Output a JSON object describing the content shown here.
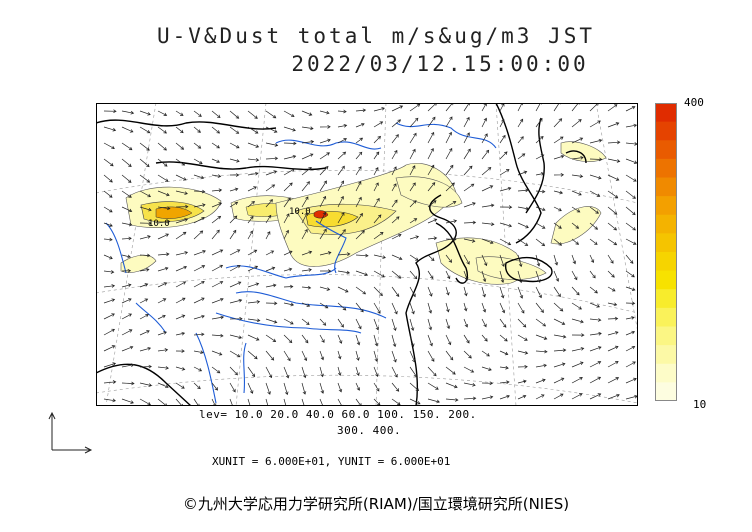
{
  "title": {
    "line1": "U-V&Dust total m/s&ug/m3 JST",
    "line2": "2022/03/12.15:00:00"
  },
  "colorbar": {
    "max_label": "400",
    "min_label": "10",
    "colors": [
      "#fdfde0",
      "#fdfcc8",
      "#fcf9a6",
      "#fbf684",
      "#faf25a",
      "#f8ec2c",
      "#f7e200",
      "#f6d400",
      "#f5c400",
      "#f4b300",
      "#f3a000",
      "#f08a00",
      "#ed7300",
      "#e95b00",
      "#e54300",
      "#e02c00"
    ]
  },
  "legend": {
    "levels_line1": "lev= 10.0 20.0 40.0 60.0 100. 150. 200.",
    "levels_line2": "300. 400.",
    "units": "XUNIT = 6.000E+01, YUNIT = 6.000E+01"
  },
  "map": {
    "contour_labels": [
      "10.0",
      "10.0"
    ],
    "colors": {
      "land_outline": "#000000",
      "rivers": "#1e5cd6",
      "dust_fill": "#fdfbc0",
      "dust_core": "#f0c200",
      "dust_peak": "#e03000"
    }
  },
  "copyright": "©九州大学応用力学研究所(RIAM)/国立環境研究所(NIES)"
}
